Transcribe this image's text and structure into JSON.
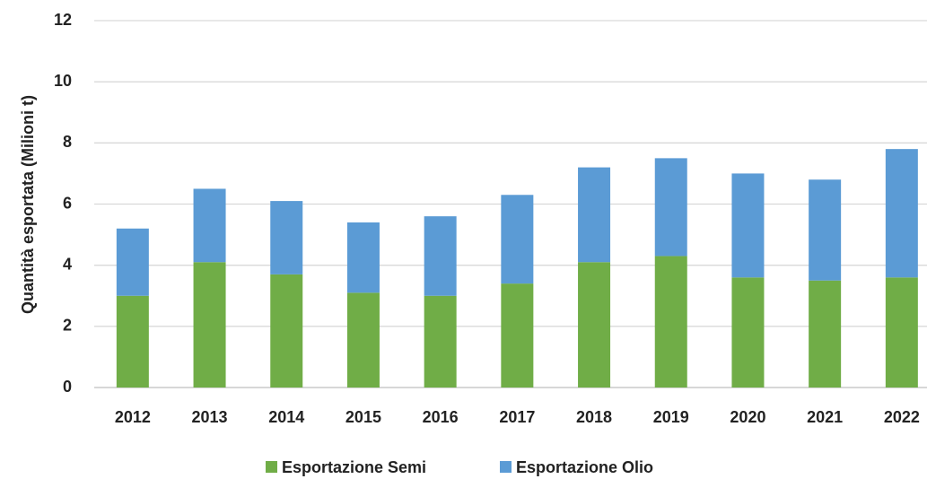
{
  "chart_data": {
    "type": "stacked_bar",
    "y_label": "Quantità esportata (Milioni t)",
    "categories": [
      "2012",
      "2013",
      "2014",
      "2015",
      "2016",
      "2017",
      "2018",
      "2019",
      "2020",
      "2021",
      "2022"
    ],
    "series": [
      {
        "name": "Esportazione Semi",
        "color": "#70ad47",
        "values": [
          3.0,
          4.1,
          3.7,
          3.1,
          3.0,
          3.4,
          4.1,
          4.3,
          3.6,
          3.5,
          3.6
        ]
      },
      {
        "name": "Esportazione Olio",
        "color": "#5b9bd5",
        "values": [
          2.2,
          2.4,
          2.4,
          2.3,
          2.6,
          2.9,
          3.1,
          3.2,
          3.4,
          3.3,
          4.2
        ]
      }
    ],
    "ylim": [
      0,
      12
    ],
    "yticks": [
      0,
      2,
      4,
      6,
      8,
      10,
      12
    ],
    "grid": true,
    "legend": "bottom"
  }
}
